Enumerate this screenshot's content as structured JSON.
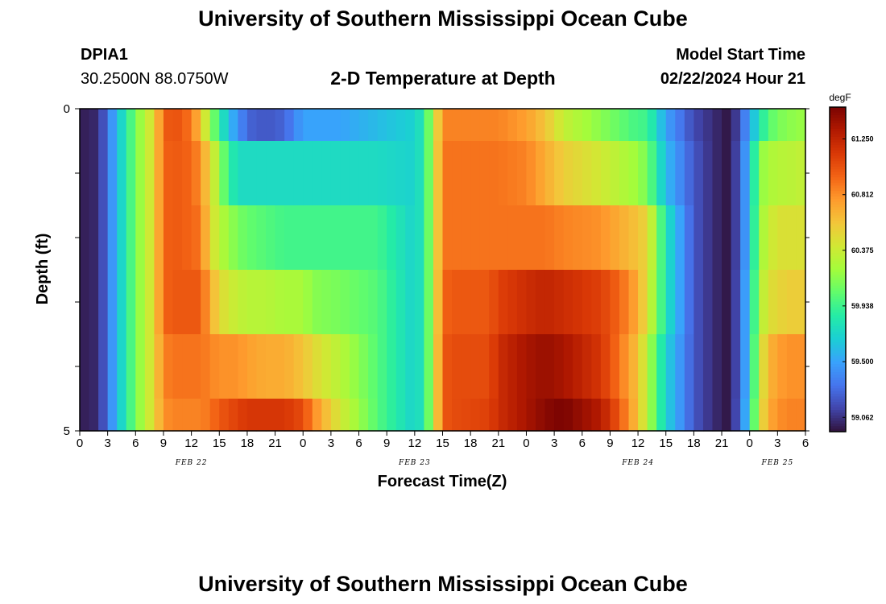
{
  "header": {
    "title": "University of Southern Mississippi Ocean Cube",
    "station_id": "DPIA1",
    "station_coords": "30.2500N  88.0750W",
    "subtitle": "2-D Temperature at Depth",
    "model_label": "Model Start Time",
    "model_time": "02/22/2024 Hour 21"
  },
  "footer": {
    "title": "University of Southern Mississippi Ocean Cube"
  },
  "chart_data": {
    "type": "heatmap",
    "title": "2-D Temperature at Depth",
    "xlabel": "Forecast Time(Z)",
    "ylabel": "Depth (ft)",
    "x_tick_labels": [
      "0",
      "3",
      "6",
      "9",
      "12",
      "15",
      "18",
      "21",
      "0",
      "3",
      "6",
      "9",
      "12",
      "15",
      "18",
      "21",
      "0",
      "3",
      "6",
      "9",
      "12",
      "15",
      "18",
      "21",
      "0",
      "3",
      "6"
    ],
    "x_day_labels": [
      {
        "label": "FEB 22",
        "tick_index": 4
      },
      {
        "label": "FEB 23",
        "tick_index": 12
      },
      {
        "label": "FEB 24",
        "tick_index": 20
      },
      {
        "label": "FEB 25",
        "tick_index": 25
      }
    ],
    "x_range_hours": [
      0,
      78
    ],
    "y_tick_labels": [
      "0",
      "5"
    ],
    "y_range_ft": [
      0,
      5
    ],
    "colorbar": {
      "unit": "degF",
      "min": 58.95,
      "max": 61.5,
      "tick_values": [
        "61.250",
        "60.812",
        "60.375",
        "59.938",
        "59.500",
        "59.062"
      ]
    },
    "colormap": [
      "#30123b",
      "#4145ab",
      "#4675ed",
      "#39a2fc",
      "#1bcfd4",
      "#24eca6",
      "#61fc6c",
      "#a4fc3b",
      "#d1e834",
      "#f3c63a",
      "#fe9b2d",
      "#f36315",
      "#d93806",
      "#b11901",
      "#7a0402"
    ],
    "depth_layers_ft": [
      "0-0.5",
      "0.5-1.5",
      "1.5-2.5",
      "2.5-3.5",
      "3.5-4.5",
      "4.5-5"
    ],
    "time_control_hours": [
      0,
      1,
      2,
      3,
      4,
      5,
      6,
      7,
      8,
      9,
      10,
      12,
      13,
      14,
      15,
      16,
      17,
      18,
      20,
      22,
      24,
      25,
      28,
      32,
      36,
      37,
      38,
      39,
      40,
      44,
      45,
      48,
      50,
      52,
      56,
      58,
      60,
      61,
      63,
      66,
      68,
      69,
      70,
      72,
      73,
      74,
      75,
      76,
      78
    ],
    "series": [
      {
        "depth_layer": "0-0.5",
        "values": [
          59.0,
          59.0,
          59.05,
          59.3,
          59.6,
          59.85,
          60.1,
          60.3,
          60.5,
          60.95,
          61.05,
          60.9,
          60.6,
          60.2,
          59.9,
          59.6,
          59.45,
          59.25,
          59.2,
          59.25,
          59.5,
          59.5,
          59.5,
          59.6,
          59.7,
          59.85,
          60.3,
          60.85,
          60.85,
          60.85,
          60.85,
          60.75,
          60.6,
          60.35,
          60.15,
          60.05,
          59.95,
          59.95,
          59.5,
          59.15,
          59.05,
          59.0,
          58.95,
          59.5,
          59.8,
          60.0,
          60.1,
          60.15,
          60.2
        ]
      },
      {
        "depth_layer": "0.5-1.5",
        "values": [
          59.0,
          59.0,
          59.05,
          59.3,
          59.6,
          59.85,
          60.1,
          60.3,
          60.5,
          60.95,
          61.0,
          60.95,
          60.8,
          60.5,
          60.2,
          59.9,
          59.75,
          59.75,
          59.75,
          59.75,
          59.75,
          59.75,
          59.75,
          59.75,
          59.7,
          59.85,
          60.3,
          60.9,
          60.9,
          60.9,
          60.9,
          60.85,
          60.7,
          60.55,
          60.4,
          60.3,
          60.2,
          60.1,
          59.6,
          59.2,
          59.05,
          59.0,
          58.95,
          59.6,
          60.15,
          60.25,
          60.3,
          60.3,
          60.35
        ]
      },
      {
        "depth_layer": "1.5-2.5",
        "values": [
          59.0,
          59.0,
          59.05,
          59.3,
          59.6,
          59.85,
          60.1,
          60.3,
          60.5,
          60.95,
          61.0,
          60.95,
          60.9,
          60.5,
          60.3,
          60.2,
          60.1,
          60.05,
          60.0,
          59.95,
          59.95,
          59.95,
          59.95,
          59.95,
          59.7,
          59.85,
          60.3,
          60.9,
          60.9,
          60.9,
          60.9,
          60.9,
          60.9,
          60.85,
          60.8,
          60.7,
          60.6,
          60.5,
          59.8,
          59.2,
          59.05,
          59.0,
          58.95,
          59.6,
          60.2,
          60.35,
          60.45,
          60.45,
          60.45
        ]
      },
      {
        "depth_layer": "2.5-3.5",
        "values": [
          59.0,
          59.0,
          59.05,
          59.3,
          59.6,
          59.85,
          60.1,
          60.3,
          60.5,
          60.95,
          61.0,
          61.0,
          61.0,
          60.7,
          60.5,
          60.4,
          60.35,
          60.3,
          60.3,
          60.25,
          60.25,
          60.15,
          60.1,
          60.0,
          59.7,
          59.85,
          60.3,
          60.95,
          61.0,
          61.0,
          61.1,
          61.2,
          61.25,
          61.2,
          61.1,
          60.95,
          60.7,
          60.45,
          59.8,
          59.2,
          59.05,
          59.0,
          58.95,
          59.65,
          60.25,
          60.45,
          60.5,
          60.55,
          60.55
        ]
      },
      {
        "depth_layer": "3.5-4.5",
        "values": [
          59.0,
          59.0,
          59.05,
          59.3,
          59.6,
          59.85,
          60.1,
          60.3,
          60.5,
          60.85,
          60.9,
          60.9,
          60.9,
          60.85,
          60.8,
          60.8,
          60.8,
          60.75,
          60.7,
          60.7,
          60.6,
          60.5,
          60.3,
          60.0,
          59.7,
          59.85,
          60.3,
          61.0,
          61.05,
          61.05,
          61.2,
          61.35,
          61.4,
          61.35,
          61.15,
          60.9,
          60.6,
          60.3,
          59.7,
          59.2,
          59.05,
          59.0,
          58.95,
          59.65,
          60.35,
          60.65,
          60.75,
          60.8,
          60.8
        ]
      },
      {
        "depth_layer": "4.5-5",
        "values": [
          59.0,
          59.0,
          59.05,
          59.3,
          59.6,
          59.85,
          60.1,
          60.3,
          60.5,
          60.8,
          60.85,
          60.85,
          60.85,
          60.9,
          61.0,
          61.05,
          61.1,
          61.15,
          61.15,
          61.15,
          61.05,
          60.85,
          60.4,
          60.0,
          59.7,
          59.85,
          60.3,
          61.0,
          61.05,
          61.1,
          61.2,
          61.35,
          61.45,
          61.5,
          61.3,
          61.0,
          60.6,
          60.3,
          59.7,
          59.2,
          59.05,
          59.0,
          58.95,
          59.7,
          60.4,
          60.7,
          60.8,
          60.85,
          60.85
        ]
      }
    ]
  }
}
